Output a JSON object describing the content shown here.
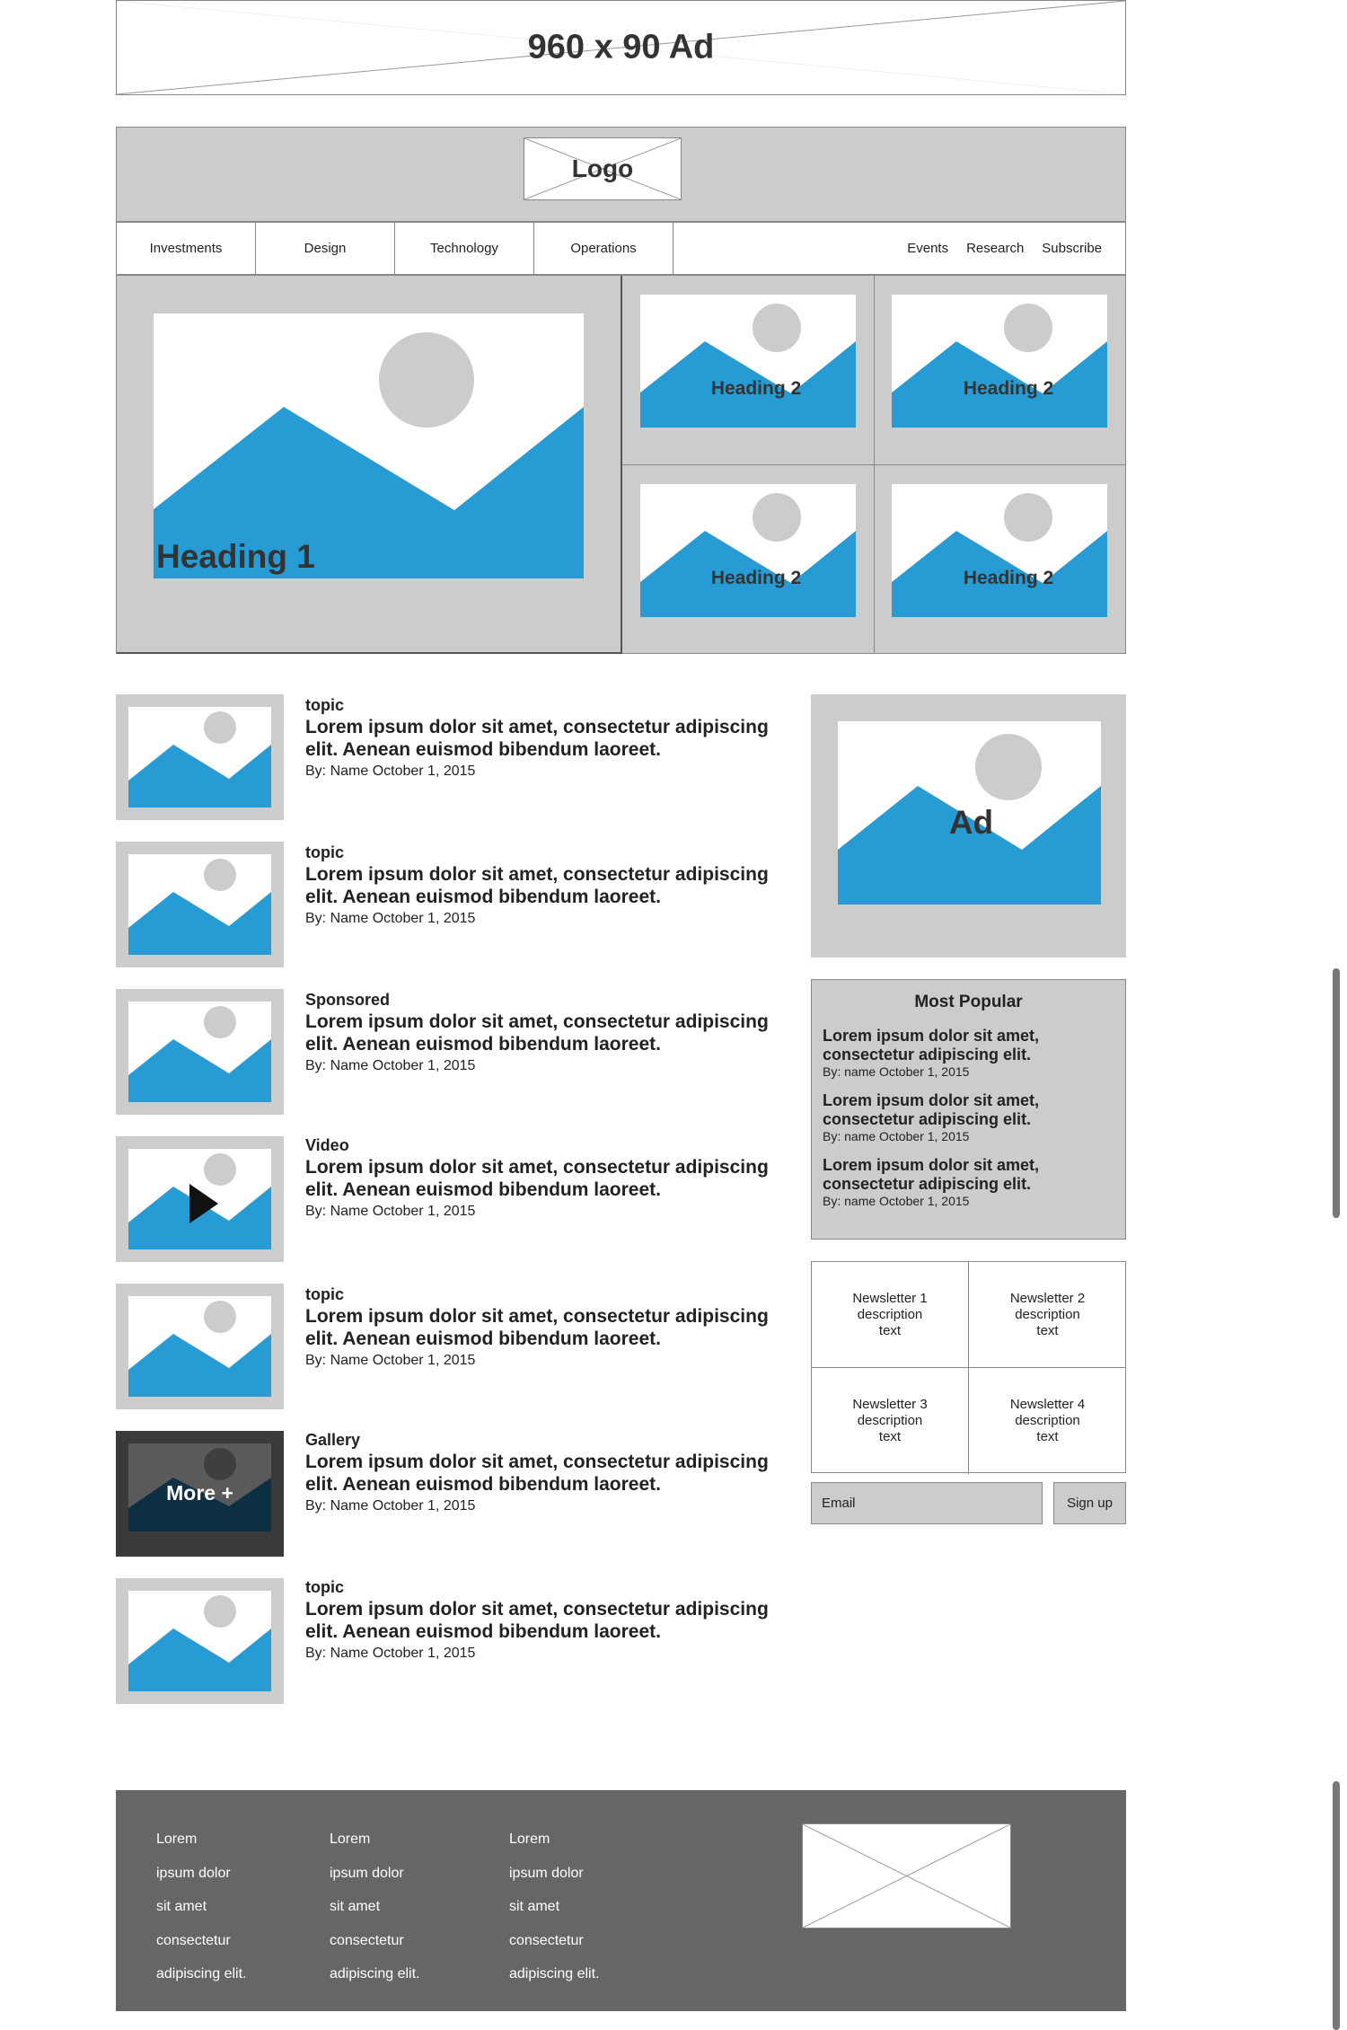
{
  "top_ad": {
    "label": "960 x 90 Ad"
  },
  "header": {
    "logo_label": "Logo"
  },
  "nav": {
    "left_items": [
      "Investments",
      "Design",
      "Technology",
      "Operations"
    ],
    "right_items": [
      "Events",
      "Research",
      "Subscribe"
    ]
  },
  "hero": {
    "main_heading": "Heading 1",
    "sub_headings": [
      "Heading 2",
      "Heading 2",
      "Heading 2",
      "Heading 2"
    ]
  },
  "articles": [
    {
      "topic": "topic",
      "title": "Lorem ipsum dolor sit amet, consectetur adipiscing elit. Aenean euismod bibendum laoreet.",
      "byline": "By: Name October 1, 2015"
    },
    {
      "topic": "topic",
      "title": "Lorem ipsum dolor sit amet, consectetur adipiscing elit. Aenean euismod bibendum laoreet.",
      "byline": "By: Name October 1, 2015"
    },
    {
      "topic": "Sponsored",
      "title": "Lorem ipsum dolor sit amet, consectetur adipiscing elit. Aenean euismod bibendum laoreet.",
      "byline": "By: Name October 1, 2015"
    },
    {
      "topic": "Video",
      "title": "Lorem ipsum dolor sit amet, consectetur adipiscing elit. Aenean euismod bibendum laoreet.",
      "byline": "By: Name October 1, 2015"
    },
    {
      "topic": "topic",
      "title": "Lorem ipsum dolor sit amet, consectetur adipiscing elit. Aenean euismod bibendum laoreet.",
      "byline": "By: Name October 1, 2015"
    },
    {
      "topic": "Gallery",
      "title": "Lorem ipsum dolor sit amet, consectetur adipiscing elit. Aenean euismod bibendum laoreet.",
      "byline": "By: Name October 1, 2015"
    },
    {
      "topic": "topic",
      "title": "Lorem ipsum dolor sit amet, consectetur adipiscing elit. Aenean euismod bibendum laoreet.",
      "byline": "By: Name October 1, 2015"
    }
  ],
  "gallery_overlay": {
    "label": "More +"
  },
  "sidebar": {
    "ad_label": "Ad",
    "most_popular": {
      "title": "Most Popular",
      "items": [
        {
          "title": "Lorem ipsum dolor sit amet, consectetur adipiscing elit.",
          "byline": "By: name October 1, 2015"
        },
        {
          "title": "Lorem ipsum dolor sit amet, consectetur adipiscing elit.",
          "byline": "By: name October 1, 2015"
        },
        {
          "title": "Lorem ipsum dolor sit amet, consectetur adipiscing elit.",
          "byline": "By: name October 1, 2015"
        }
      ]
    },
    "newsletters": [
      "Newsletter 1\ndescription\ntext",
      "Newsletter 2\ndescription\ntext",
      "Newsletter 3\ndescription\ntext",
      "Newsletter 4\ndescription\ntext"
    ],
    "email_placeholder": "Email",
    "signup_label": "Sign up"
  },
  "footer": {
    "columns": [
      [
        "Lorem",
        "ipsum dolor",
        "sit amet",
        "consectetur",
        "adipiscing elit."
      ],
      [
        "Lorem",
        "ipsum dolor",
        "sit amet",
        "consectetur",
        "adipiscing elit."
      ],
      [
        "Lorem",
        "ipsum dolor",
        "sit amet",
        "consectetur",
        "adipiscing elit."
      ]
    ]
  },
  "colors": {
    "accent": "#279bd3",
    "panel": "#cccccc",
    "footer": "#666666"
  }
}
